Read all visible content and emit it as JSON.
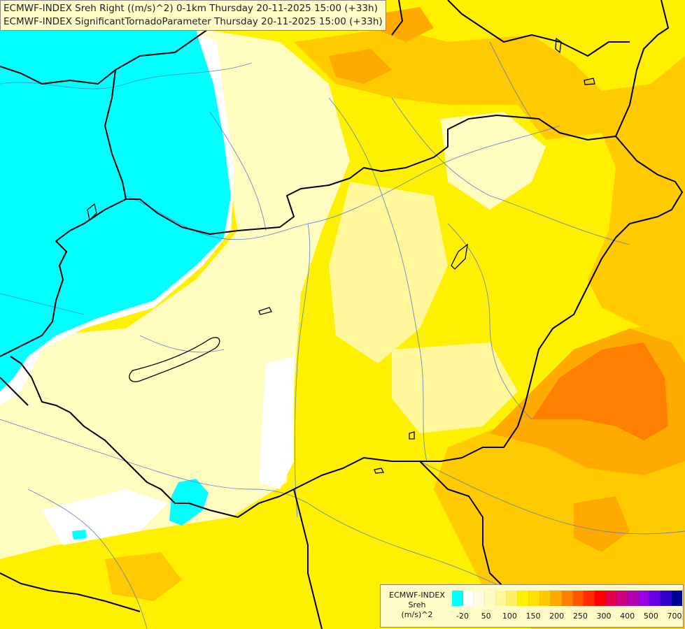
{
  "title": {
    "line1": "ECMWF-INDEX Sreh Right ((m/s)^2) 0-1km Thursday 20-11-2025 15:00 (+33h)",
    "line2": "ECMWF-INDEX SignificantTornadoParameter Thursday 20-11-2025 15:00 (+33h)"
  },
  "legend": {
    "source": "ECMWF-INDEX",
    "variable": "Sreh",
    "unit": "(m/s)^2",
    "colors": [
      "#00ffff",
      "#ffffff",
      "#fffbe0",
      "#fffbc0",
      "#fff799",
      "#ffef66",
      "#fff000",
      "#ffe000",
      "#ffcb00",
      "#ffaa00",
      "#ff8000",
      "#ff5500",
      "#ff2a00",
      "#ff0000",
      "#e6004c",
      "#cc0080",
      "#b300b3",
      "#9900e6",
      "#6600e6",
      "#3300cc",
      "#000099"
    ],
    "tick_labels": [
      "-20",
      "50",
      "100",
      "150",
      "200",
      "250",
      "300",
      "400",
      "500",
      "700"
    ]
  },
  "map_colors": {
    "negative": "#00ffff",
    "near_zero": "#ffffff",
    "low": "#fffcc0",
    "moderate": "#fff000",
    "elevated": "#ffcb00",
    "high": "#ffaa00",
    "very_high": "#ff8000"
  }
}
